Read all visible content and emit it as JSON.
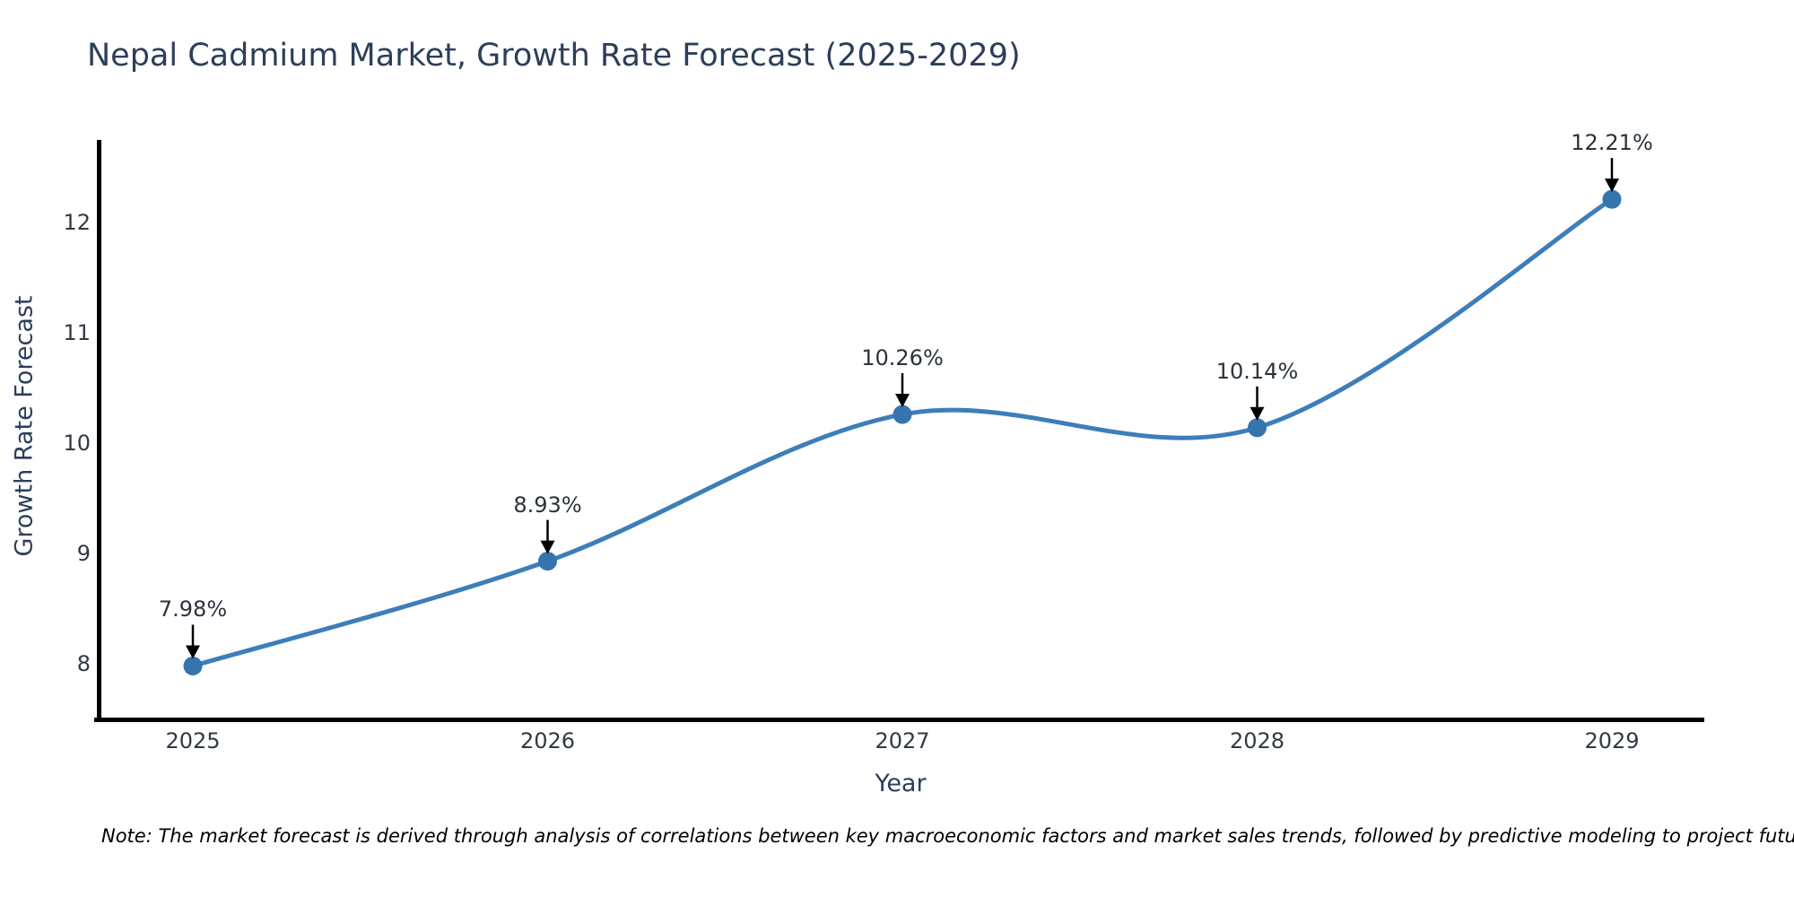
{
  "title": "Nepal Cadmium Market, Growth Rate Forecast (2025-2029)",
  "note": "Note: The market forecast is derived through analysis of correlations between key macroeconomic factors and market sales trends, followed by predictive modeling to project future sales",
  "chart_data": {
    "type": "line",
    "title": "Nepal Cadmium Market, Growth Rate Forecast (2025-2029)",
    "xlabel": "Year",
    "ylabel": "Growth Rate Forecast",
    "x": [
      2025,
      2026,
      2027,
      2028,
      2029
    ],
    "x_tick_labels": [
      "2025",
      "2026",
      "2027",
      "2028",
      "2029"
    ],
    "series": [
      {
        "name": "Growth Rate Forecast",
        "values": [
          7.98,
          8.93,
          10.26,
          10.14,
          12.21
        ]
      }
    ],
    "point_labels": [
      "7.98%",
      "8.93%",
      "10.26%",
      "10.14%",
      "12.21%"
    ],
    "y_ticks": [
      8,
      9,
      10,
      11,
      12
    ],
    "ylim": [
      7.5,
      12.75
    ],
    "xlim": [
      2024.73,
      2029.26
    ],
    "grid": false,
    "legend": false,
    "curve": "smooth-spline",
    "line_color": "#3d7eb9",
    "marker_color": "#3674ae",
    "arrow_color": "#000000",
    "axis_color": "#000000",
    "title_color": "#2d3e5a",
    "tick_color": "#303a46",
    "annotation_color": "#2a323e"
  }
}
